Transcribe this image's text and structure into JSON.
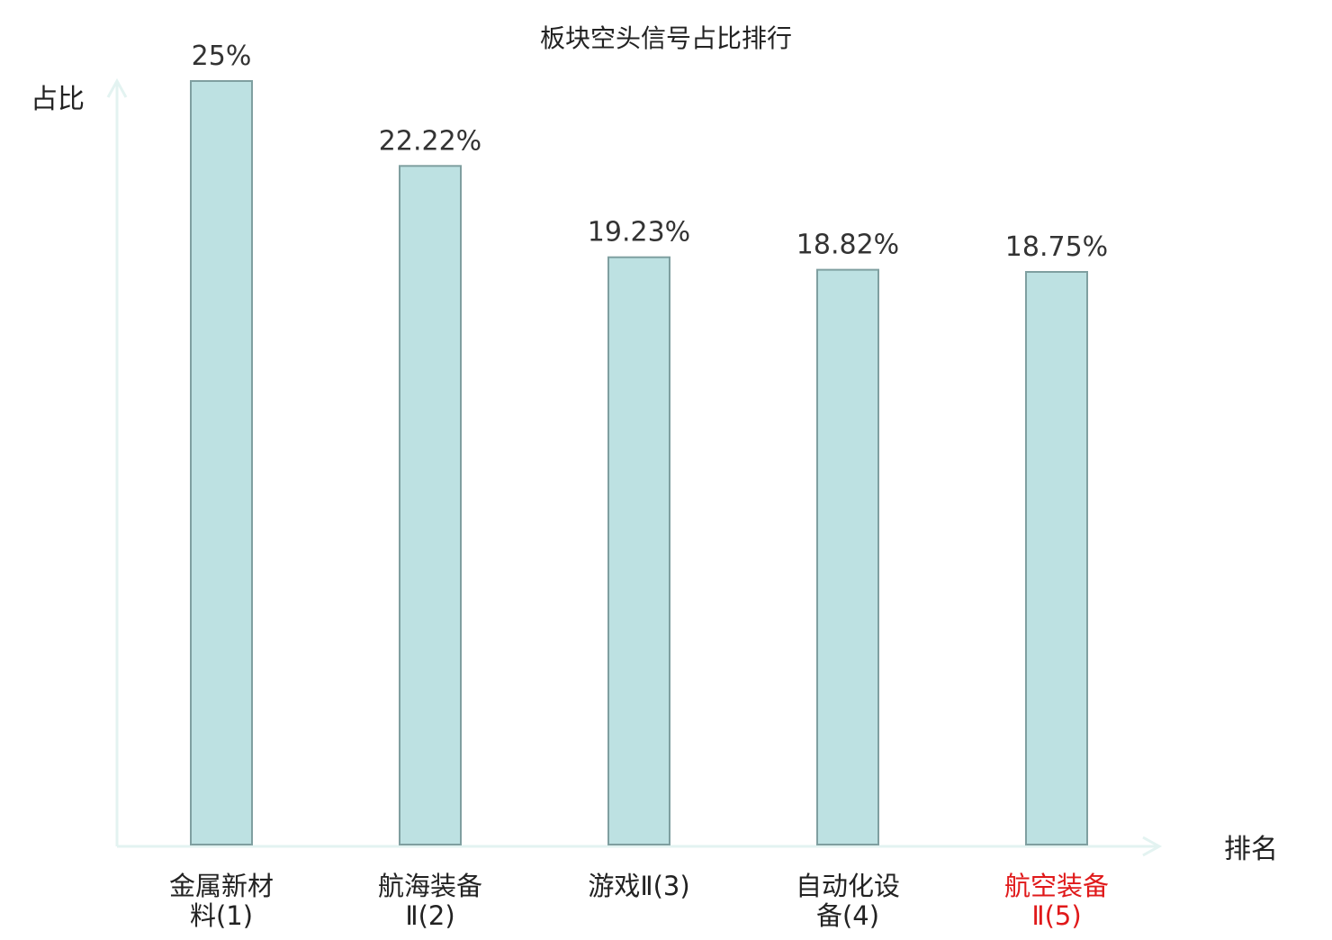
{
  "chart_data": {
    "type": "bar",
    "title": "板块空头信号占比排行",
    "ylabel": "占比",
    "xlabel": "排名",
    "categories": [
      [
        "金属新材",
        "料(1)"
      ],
      [
        "航海装备",
        "Ⅱ(2)"
      ],
      [
        "游戏Ⅱ(3)"
      ],
      [
        "自动化设",
        "备(4)"
      ],
      [
        "航空装备",
        "Ⅱ(5)"
      ]
    ],
    "values": [
      25,
      22.22,
      19.23,
      18.82,
      18.75
    ],
    "value_labels": [
      "25%",
      "22.22%",
      "19.23%",
      "18.82%",
      "18.75%"
    ],
    "ylim": [
      0,
      25
    ],
    "highlight_index": 4,
    "grid": false,
    "legend": "none",
    "colors": {
      "bar_fill": "#bde1e2",
      "bar_stroke": "#7f9fa0",
      "axis": "#e3f3f1",
      "text": "#222222",
      "value_text": "#333333",
      "highlight": "#e0191a"
    }
  }
}
